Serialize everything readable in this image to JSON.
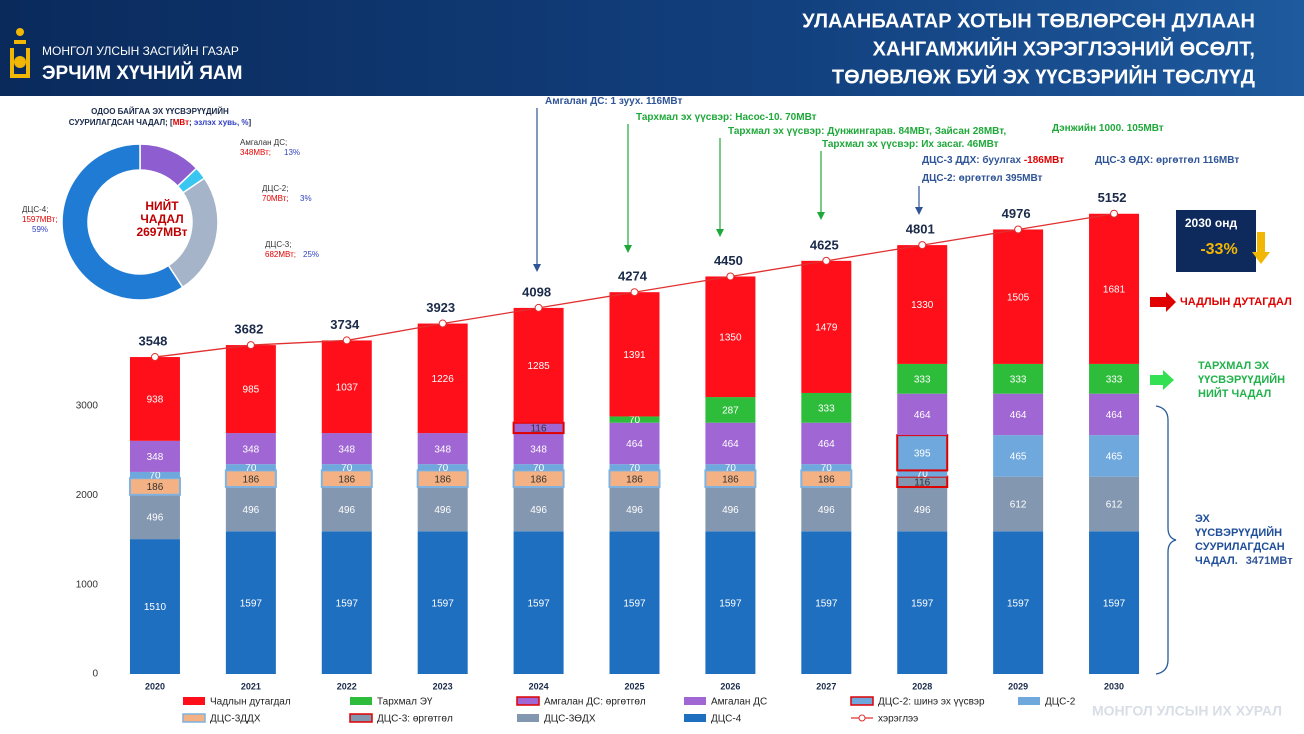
{
  "header": {
    "org": "МОНГОЛ УЛСЫН ЗАСГИЙН ГАЗАР",
    "ministry": "ЭРЧИМ ХҮЧНИЙ ЯАМ",
    "title": [
      "УЛААНБААТАР ХОТЫН ТӨВЛӨРСӨН ДУЛААН",
      "ХАНГАМЖИЙН ХЭРЭГЛЭЭНИЙ ӨСӨЛТ,",
      "ТӨЛӨВЛӨЖ БУЙ ЭХ ҮҮСВЭРИЙН ТӨСЛҮҮД"
    ]
  },
  "chart_data": [
    {
      "type": "bar",
      "stacked": true,
      "categories": [
        "2020",
        "2021",
        "2022",
        "2023",
        "2024",
        "2025",
        "2026",
        "2027",
        "2028",
        "2029",
        "2030"
      ],
      "ylim": [
        0,
        6000
      ],
      "yticks": [
        0,
        1000,
        2000,
        3000
      ],
      "grid": false,
      "series": [
        {
          "name": "Чадлын дутагдал",
          "color": "#fe0f1a",
          "values": [
            938,
            985,
            1037,
            1226,
            1285,
            1391,
            1350,
            1479,
            1330,
            1505,
            1681
          ]
        },
        {
          "name": "Тархмал ЭҮ",
          "color": "#2ebd3b",
          "values": [
            null,
            null,
            null,
            null,
            null,
            70,
            287,
            333,
            333,
            333,
            333
          ]
        },
        {
          "name": "Амгалан ДС: өргөтгөл",
          "color": "#a066d3",
          "border": "#e00000",
          "values": [
            null,
            null,
            null,
            null,
            116,
            null,
            null,
            null,
            null,
            null,
            null
          ]
        },
        {
          "name": "Амгалан ДС",
          "color": "#a066d3",
          "values": [
            348,
            348,
            348,
            348,
            348,
            464,
            464,
            464,
            464,
            464,
            464
          ]
        },
        {
          "name": "ДЦС-2: шинэ эх үүсвэр",
          "color": "#6fa8dc",
          "border": "#e00000",
          "values": [
            null,
            null,
            null,
            null,
            null,
            null,
            null,
            null,
            395,
            null,
            null
          ]
        },
        {
          "name": "ДЦС-2",
          "color": "#6fa8dc",
          "values": [
            70,
            70,
            70,
            70,
            70,
            70,
            70,
            70,
            70,
            465,
            465
          ]
        },
        {
          "name": "ДЦС-3ДДХ",
          "color": "#f4b183",
          "border": "#7fb2e0",
          "values": [
            186,
            186,
            186,
            186,
            186,
            186,
            186,
            186,
            null,
            null,
            null
          ]
        },
        {
          "name": "ДЦС-3: өргөтгөл",
          "color": "#8497b0",
          "border": "#e00000",
          "values": [
            null,
            null,
            null,
            null,
            null,
            null,
            null,
            null,
            116,
            null,
            null
          ]
        },
        {
          "name": "ДЦС-3ӨДХ",
          "color": "#8497b0",
          "values": [
            496,
            496,
            496,
            496,
            496,
            496,
            496,
            496,
            496,
            612,
            612
          ]
        },
        {
          "name": "ДЦС-4",
          "color": "#1f6fc0",
          "values": [
            1510,
            1597,
            1597,
            1597,
            1597,
            1597,
            1597,
            1597,
            1597,
            1597,
            1597
          ]
        },
        {
          "name": "хэрэглээ",
          "type": "line",
          "color": "#e03030",
          "values": [
            3548,
            3682,
            3734,
            3923,
            4098,
            4274,
            4450,
            4625,
            4801,
            4976,
            5152
          ]
        }
      ],
      "annotations": [
        [
          {
            "text": "Амгалан ДС: 1 зуух. 116МВт",
            "color": "#2f5597"
          }
        ],
        [
          {
            "text": "Тархмал эх үүсвэр: Насос-10. 70МВт",
            "color": "#1fa83a"
          }
        ],
        [
          {
            "text": "Тархмал эх үүсвэр: Дунжингарав. 84МВт, Зайсан 28МВт,",
            "color": "#1fa83a"
          }
        ],
        [
          {
            "text": "Тархмал эх үүсвэр: Их засаг. 46МВт",
            "color": "#1fa83a"
          }
        ],
        [
          {
            "text": "Дэнжийн 1000. 105МВт",
            "color": "#1fa83a"
          }
        ],
        [
          {
            "text": "ДЦС-3 ДДХ: буулгах ",
            "color": "#2f5597"
          },
          {
            "text": "-186МВт",
            "color": "#e00000"
          }
        ],
        [
          {
            "text": "ДЦС-3 ӨДХ: өргөтгөл 116МВт",
            "color": "#2f5597"
          }
        ],
        [
          {
            "text": "ДЦС-2: өргөтгөл 395МВт",
            "color": "#2f5597"
          }
        ]
      ]
    },
    {
      "type": "pie",
      "donut": true,
      "title": [
        [
          {
            "text": "ОДОО БАЙГАА ЭХ ҮҮСВЭРҮҮДИЙН",
            "color": "#1a2a4a"
          }
        ],
        [
          {
            "text": "СУУРИЛАГДСАН ЧАДАЛ; [",
            "color": "#1a2a4a"
          },
          {
            "text": "МВт",
            "color": "#e00000"
          },
          {
            "text": "; ",
            "color": "#1a2a4a"
          },
          {
            "text": "эзлэх хувь, %",
            "color": "#3040c0"
          },
          {
            "text": "]",
            "color": "#1a2a4a"
          }
        ]
      ],
      "center": [
        "НИЙТ",
        "ЧАДАЛ",
        "2697МВт"
      ],
      "categories": [
        "Амгалан ДС;",
        "ДЦС-2;",
        "ДЦС-3;",
        "ДЦС-4;"
      ],
      "values": [
        348,
        70,
        682,
        1597
      ],
      "value_labels": [
        "348МВт;",
        "70МВт;",
        "682МВт;",
        "1597МВт;"
      ],
      "percents": [
        13,
        3,
        25,
        59
      ],
      "percent_labels": [
        "13%",
        "3%",
        "25%",
        "59%"
      ],
      "colors": [
        "#8e5ed0",
        "#39c6f0",
        "#a5b4c8",
        "#1f7bd4"
      ]
    }
  ],
  "callout": {
    "year": "2030 онд",
    "change": "-33%"
  },
  "side_labels": [
    {
      "lines": [
        "ЧАДЛЫН ДУТАГДАЛ"
      ],
      "color": "#e00000"
    },
    {
      "lines": [
        "ТАРХМАЛ ЭХ",
        "ҮҮСВЭРҮҮДИЙН",
        "НИЙТ ЧАДАЛ"
      ],
      "color": "#22b24c"
    },
    {
      "lines": [
        "ЭХ",
        "ҮҮСВЭРҮҮДИЙН",
        "СУУРИЛАГДСАН",
        "ЧАДАЛ."
      ],
      "highlight": "3471МВт",
      "color": "#1f4e9a"
    }
  ],
  "footer": "МОНГОЛ УЛСЫН ИХ ХУРАЛ"
}
